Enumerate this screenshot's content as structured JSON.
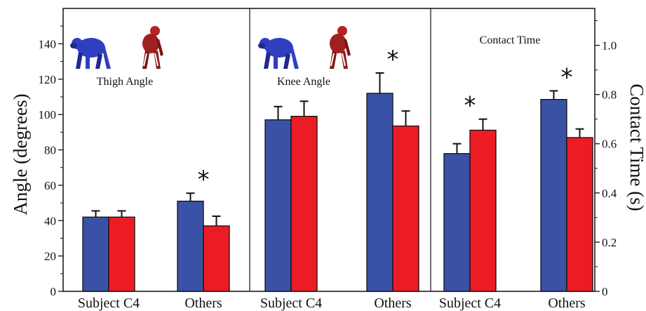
{
  "chart_data": {
    "type": "bar",
    "colors": {
      "blue": "#3a52a6",
      "red": "#ed1c24"
    },
    "left_axis": {
      "label": "Angle (degrees)",
      "range": [
        0,
        160
      ],
      "ticks": [
        0,
        20,
        40,
        60,
        80,
        100,
        120,
        140
      ]
    },
    "right_axis": {
      "label": "Contact Time (s)",
      "range": [
        0,
        1.15
      ],
      "ticks": [
        "0",
        "0.2",
        "0.4",
        "0.6",
        "0.8",
        "1.0"
      ]
    },
    "panels": [
      {
        "title": "Thigh Angle",
        "axis": "left",
        "categories": [
          "Subject C4",
          "Others"
        ],
        "series": [
          {
            "color": "blue",
            "values": [
              42,
              51
            ],
            "errors": [
              3.5,
              4.5
            ]
          },
          {
            "color": "red",
            "values": [
              42,
              37
            ],
            "errors": [
              3.5,
              5.5
            ]
          }
        ],
        "significance": [
          false,
          true
        ]
      },
      {
        "title": "Knee Angle",
        "axis": "left",
        "categories": [
          "Subject C4",
          "Others"
        ],
        "series": [
          {
            "color": "blue",
            "values": [
              97,
              112
            ],
            "errors": [
              7.5,
              11.5
            ]
          },
          {
            "color": "red",
            "values": [
              99,
              93.5
            ],
            "errors": [
              8.5,
              8.5
            ]
          }
        ],
        "significance": [
          false,
          true
        ]
      },
      {
        "title": "Contact Time",
        "axis": "right",
        "categories": [
          "Subject C4",
          "Others"
        ],
        "series": [
          {
            "color": "blue",
            "values": [
              0.56,
              0.78
            ],
            "errors": [
              0.04,
              0.035
            ]
          },
          {
            "color": "red",
            "values": [
              0.655,
              0.625
            ],
            "errors": [
              0.045,
              0.035
            ]
          }
        ],
        "significance": [
          true,
          true
        ]
      }
    ],
    "significance_marker": "*",
    "grid": false
  }
}
